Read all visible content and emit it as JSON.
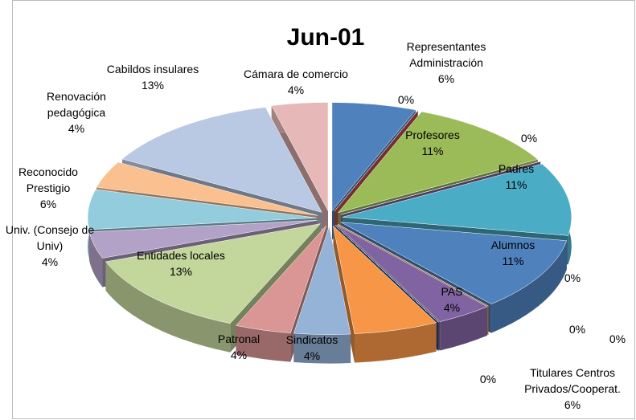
{
  "chart_data": {
    "type": "pie",
    "title": "Jun-01",
    "categories": [
      "Representantes Administración",
      null,
      "Profesores",
      null,
      "Padres",
      "Alumnos",
      null,
      "PAS",
      null,
      null,
      null,
      "Titulares Centros Privados/Cooperat.",
      "Sindicatos",
      "Patronal",
      "Entidades locales",
      "Univ. (Consejo de Univ)",
      "Reconocido Prestigio",
      "Renovación pedagógica",
      "Cabildos insulares",
      "Cámara de comercio"
    ],
    "values": [
      6,
      0,
      11,
      0,
      11,
      11,
      0,
      4,
      0,
      0,
      0,
      6,
      4,
      4,
      13,
      4,
      6,
      4,
      13,
      4
    ],
    "value_labels": [
      "6%",
      "0%",
      "11%",
      "0%",
      "11%",
      "11%",
      "0%",
      "4%",
      "0%",
      "0%",
      "0%",
      "6%",
      "4%",
      "4%",
      "13%",
      "4%",
      "6%",
      "4%",
      "13%",
      "4%"
    ],
    "colors": [
      "#4f81bd",
      "#c0504d",
      "#9bbb59",
      "#8064a2",
      "#4bacc6",
      "#4f81bd",
      "#f79646",
      "#8064a2",
      "#4bacc6",
      "#f79646",
      "#2c4d75",
      "#f79646",
      "#95b3d7",
      "#d99694",
      "#c3d69b",
      "#b3a2c7",
      "#93cddd",
      "#fac090",
      "#b9c8e3",
      "#e6b9b8"
    ]
  }
}
